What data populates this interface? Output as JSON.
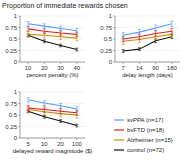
{
  "chart_data": [
    {
      "type": "line",
      "title": "Proportion of immediate rewards chosen",
      "xlabel": "percent penalty (%)",
      "categories": [
        "10",
        "20",
        "30",
        "40"
      ],
      "ylim": [
        0,
        1
      ],
      "yticks": [
        0,
        0.25,
        0.5,
        0.75,
        1
      ],
      "legend": "lower right",
      "series": [
        {
          "name": "svPPA (n=17)",
          "color": "#5599ff",
          "values": [
            0.83,
            0.78,
            0.73,
            0.68
          ],
          "errors": [
            0.05,
            0.05,
            0.05,
            0.05
          ]
        },
        {
          "name": "bvFTD (n=18)",
          "color": "#dd2222",
          "values": [
            0.72,
            0.67,
            0.63,
            0.6
          ],
          "errors": [
            0.05,
            0.05,
            0.05,
            0.05
          ]
        },
        {
          "name": "Alzheimer (n=15)",
          "color": "#cc8800",
          "values": [
            0.6,
            0.58,
            0.55,
            0.52
          ],
          "errors": [
            0.06,
            0.06,
            0.06,
            0.06
          ]
        },
        {
          "name": "control (n=72)",
          "color": "#111111",
          "values": [
            0.58,
            0.45,
            0.36,
            0.27
          ],
          "errors": [
            0.03,
            0.03,
            0.03,
            0.03
          ]
        }
      ]
    },
    {
      "type": "line",
      "xlabel": "delay length (days)",
      "categories": [
        "7",
        "14",
        "90",
        "180"
      ],
      "ylim": [
        0,
        1
      ],
      "yticks": [
        0,
        0.25,
        0.5,
        0.75,
        1
      ],
      "series": [
        {
          "name": "svPPA (n=17)",
          "color": "#5599ff",
          "values": [
            0.58,
            0.65,
            0.74,
            0.83
          ],
          "errors": [
            0.06,
            0.06,
            0.06,
            0.06
          ]
        },
        {
          "name": "bvFTD (n=18)",
          "color": "#dd2222",
          "values": [
            0.5,
            0.55,
            0.62,
            0.67
          ],
          "errors": [
            0.06,
            0.06,
            0.06,
            0.06
          ]
        },
        {
          "name": "Alzheimer (n=15)",
          "color": "#cc8800",
          "values": [
            0.45,
            0.49,
            0.55,
            0.6
          ],
          "errors": [
            0.07,
            0.07,
            0.07,
            0.07
          ]
        },
        {
          "name": "control (n=72)",
          "color": "#111111",
          "values": [
            0.24,
            0.28,
            0.46,
            0.55
          ],
          "errors": [
            0.03,
            0.03,
            0.04,
            0.04
          ]
        }
      ]
    },
    {
      "type": "line",
      "xlabel": "delayed reward magnitude ($)",
      "categories": [
        "5",
        "10",
        "20",
        "100"
      ],
      "ylim": [
        0,
        1
      ],
      "yticks": [
        0,
        0.25,
        0.5,
        0.75,
        1
      ],
      "series": [
        {
          "name": "svPPA (n=17)",
          "color": "#5599ff",
          "values": [
            0.83,
            0.76,
            0.7,
            0.63
          ],
          "errors": [
            0.05,
            0.05,
            0.05,
            0.05
          ]
        },
        {
          "name": "bvFTD (n=18)",
          "color": "#dd2222",
          "values": [
            0.65,
            0.62,
            0.58,
            0.55
          ],
          "errors": [
            0.06,
            0.06,
            0.06,
            0.06
          ]
        },
        {
          "name": "Alzheimer (n=15)",
          "color": "#cc8800",
          "values": [
            0.62,
            0.57,
            0.53,
            0.5
          ],
          "errors": [
            0.07,
            0.07,
            0.07,
            0.07
          ]
        },
        {
          "name": "control (n=72)",
          "color": "#111111",
          "values": [
            0.58,
            0.46,
            0.37,
            0.27
          ],
          "errors": [
            0.03,
            0.03,
            0.03,
            0.03
          ]
        }
      ]
    }
  ]
}
